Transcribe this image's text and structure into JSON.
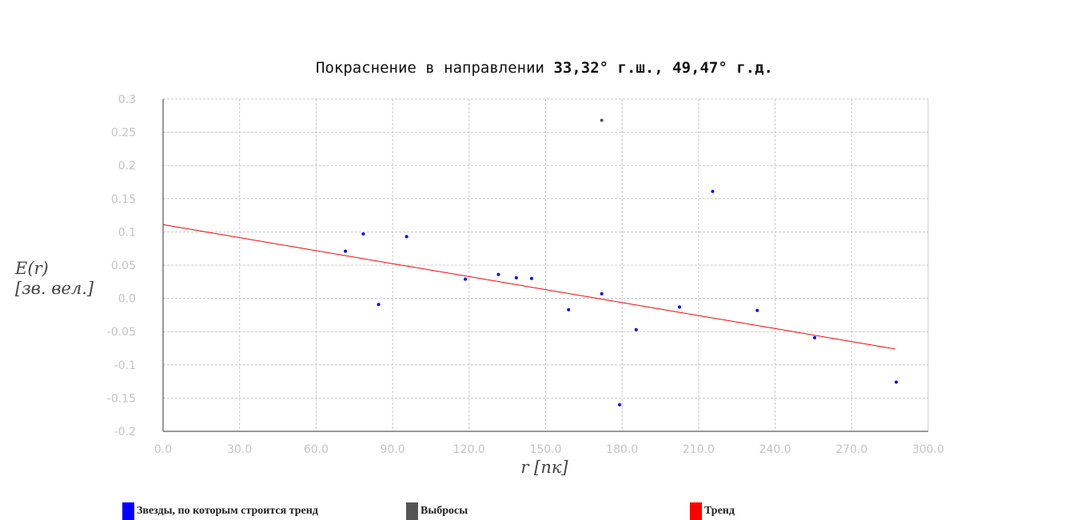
{
  "chart_data": {
    "type": "scatter",
    "title_regular": "Покраснение в направлении",
    "title_bold": "33,32° г.ш., 49,47° г.д.",
    "xlabel": "r [пк]",
    "ylabel_line1": "E(r)",
    "ylabel_line2": "[зв. вел.]",
    "xlim": [
      0,
      300
    ],
    "ylim": [
      -0.2,
      0.3
    ],
    "x_ticks": [
      "0.0",
      "30.0",
      "60.0",
      "90.0",
      "120.0",
      "150.0",
      "180.0",
      "210.0",
      "240.0",
      "270.0",
      "300.0"
    ],
    "y_ticks": [
      "0.3",
      "0.25",
      "0.2",
      "0.15",
      "0.1",
      "0.05",
      "0.0",
      "-0.05",
      "-0.1",
      "-0.15",
      "-0.2"
    ],
    "grid": true,
    "legend_position": "bottom",
    "series": [
      {
        "name": "Звезды, по которым строится тренд",
        "color": "#0000ff",
        "points": [
          [
            71.5,
            0.071
          ],
          [
            78.5,
            0.097
          ],
          [
            84.5,
            -0.009
          ],
          [
            95.5,
            0.093
          ],
          [
            118.5,
            0.029
          ],
          [
            131.5,
            0.036
          ],
          [
            138.5,
            0.031
          ],
          [
            144.5,
            0.03
          ],
          [
            159.0,
            -0.017
          ],
          [
            172.0,
            0.007
          ],
          [
            179.0,
            -0.16
          ],
          [
            185.5,
            -0.047
          ],
          [
            202.5,
            -0.013
          ],
          [
            215.5,
            0.161
          ],
          [
            233.0,
            -0.018
          ],
          [
            255.5,
            -0.059
          ],
          [
            287.5,
            -0.126
          ]
        ]
      },
      {
        "name": "Выбросы",
        "color": "#555555",
        "points": [
          [
            172.0,
            0.268
          ]
        ]
      },
      {
        "name": "Тренд",
        "color": "#ff0000",
        "line": [
          [
            0,
            0.111
          ],
          [
            287,
            -0.076
          ]
        ]
      }
    ]
  }
}
